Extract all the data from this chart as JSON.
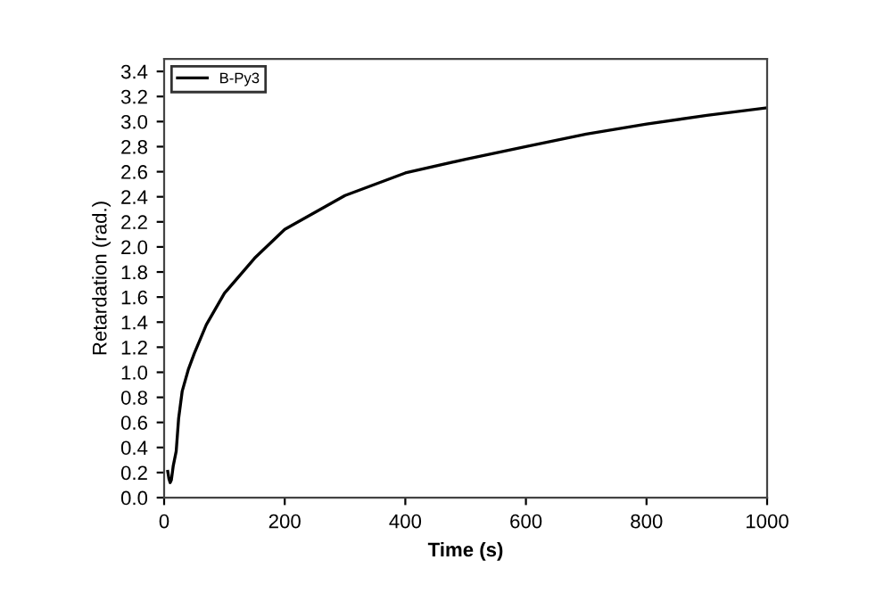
{
  "chart_data": {
    "type": "line",
    "xlabel": "Time (s)",
    "ylabel": "Retardation (rad.)",
    "series": [
      {
        "name": "B-Py3",
        "color": "#000000",
        "x": [
          6,
          8,
          10,
          12,
          15,
          20,
          24,
          30,
          40,
          50,
          70,
          100,
          150,
          200,
          300,
          400,
          500,
          600,
          700,
          800,
          900,
          1000
        ],
        "values": [
          0.21,
          0.15,
          0.12,
          0.14,
          0.25,
          0.37,
          0.63,
          0.85,
          1.02,
          1.15,
          1.38,
          1.63,
          1.91,
          2.14,
          2.41,
          2.59,
          2.7,
          2.8,
          2.9,
          2.98,
          3.05,
          3.11
        ]
      }
    ],
    "xlim": [
      0,
      1000
    ],
    "ylim": [
      0,
      3.5
    ],
    "xticks": [
      0,
      200,
      400,
      600,
      800,
      1000
    ],
    "yticks": [
      {
        "value": 0,
        "label": "0.0"
      },
      {
        "value": 0.2,
        "label": "0.2"
      },
      {
        "value": 0.4,
        "label": "0.4"
      },
      {
        "value": 0.6,
        "label": "0.6"
      },
      {
        "value": 0.8,
        "label": "0.8"
      },
      {
        "value": 1.0,
        "label": "1.0"
      },
      {
        "value": 1.2,
        "label": "1.2"
      },
      {
        "value": 1.4,
        "label": "1.4"
      },
      {
        "value": 1.6,
        "label": "1.6"
      },
      {
        "value": 1.8,
        "label": "1.8"
      },
      {
        "value": 2.0,
        "label": "2.0"
      },
      {
        "value": 2.2,
        "label": "2.2"
      },
      {
        "value": 2.4,
        "label": "2.4"
      },
      {
        "value": 2.6,
        "label": "2.6"
      },
      {
        "value": 2.8,
        "label": "2.8"
      },
      {
        "value": 3.0,
        "label": "3.0"
      },
      {
        "value": 3.2,
        "label": "3.2"
      },
      {
        "value": 3.4,
        "label": "3.4"
      }
    ],
    "legend": "top left",
    "grid": false,
    "marker": "none",
    "line_style": "solid"
  }
}
